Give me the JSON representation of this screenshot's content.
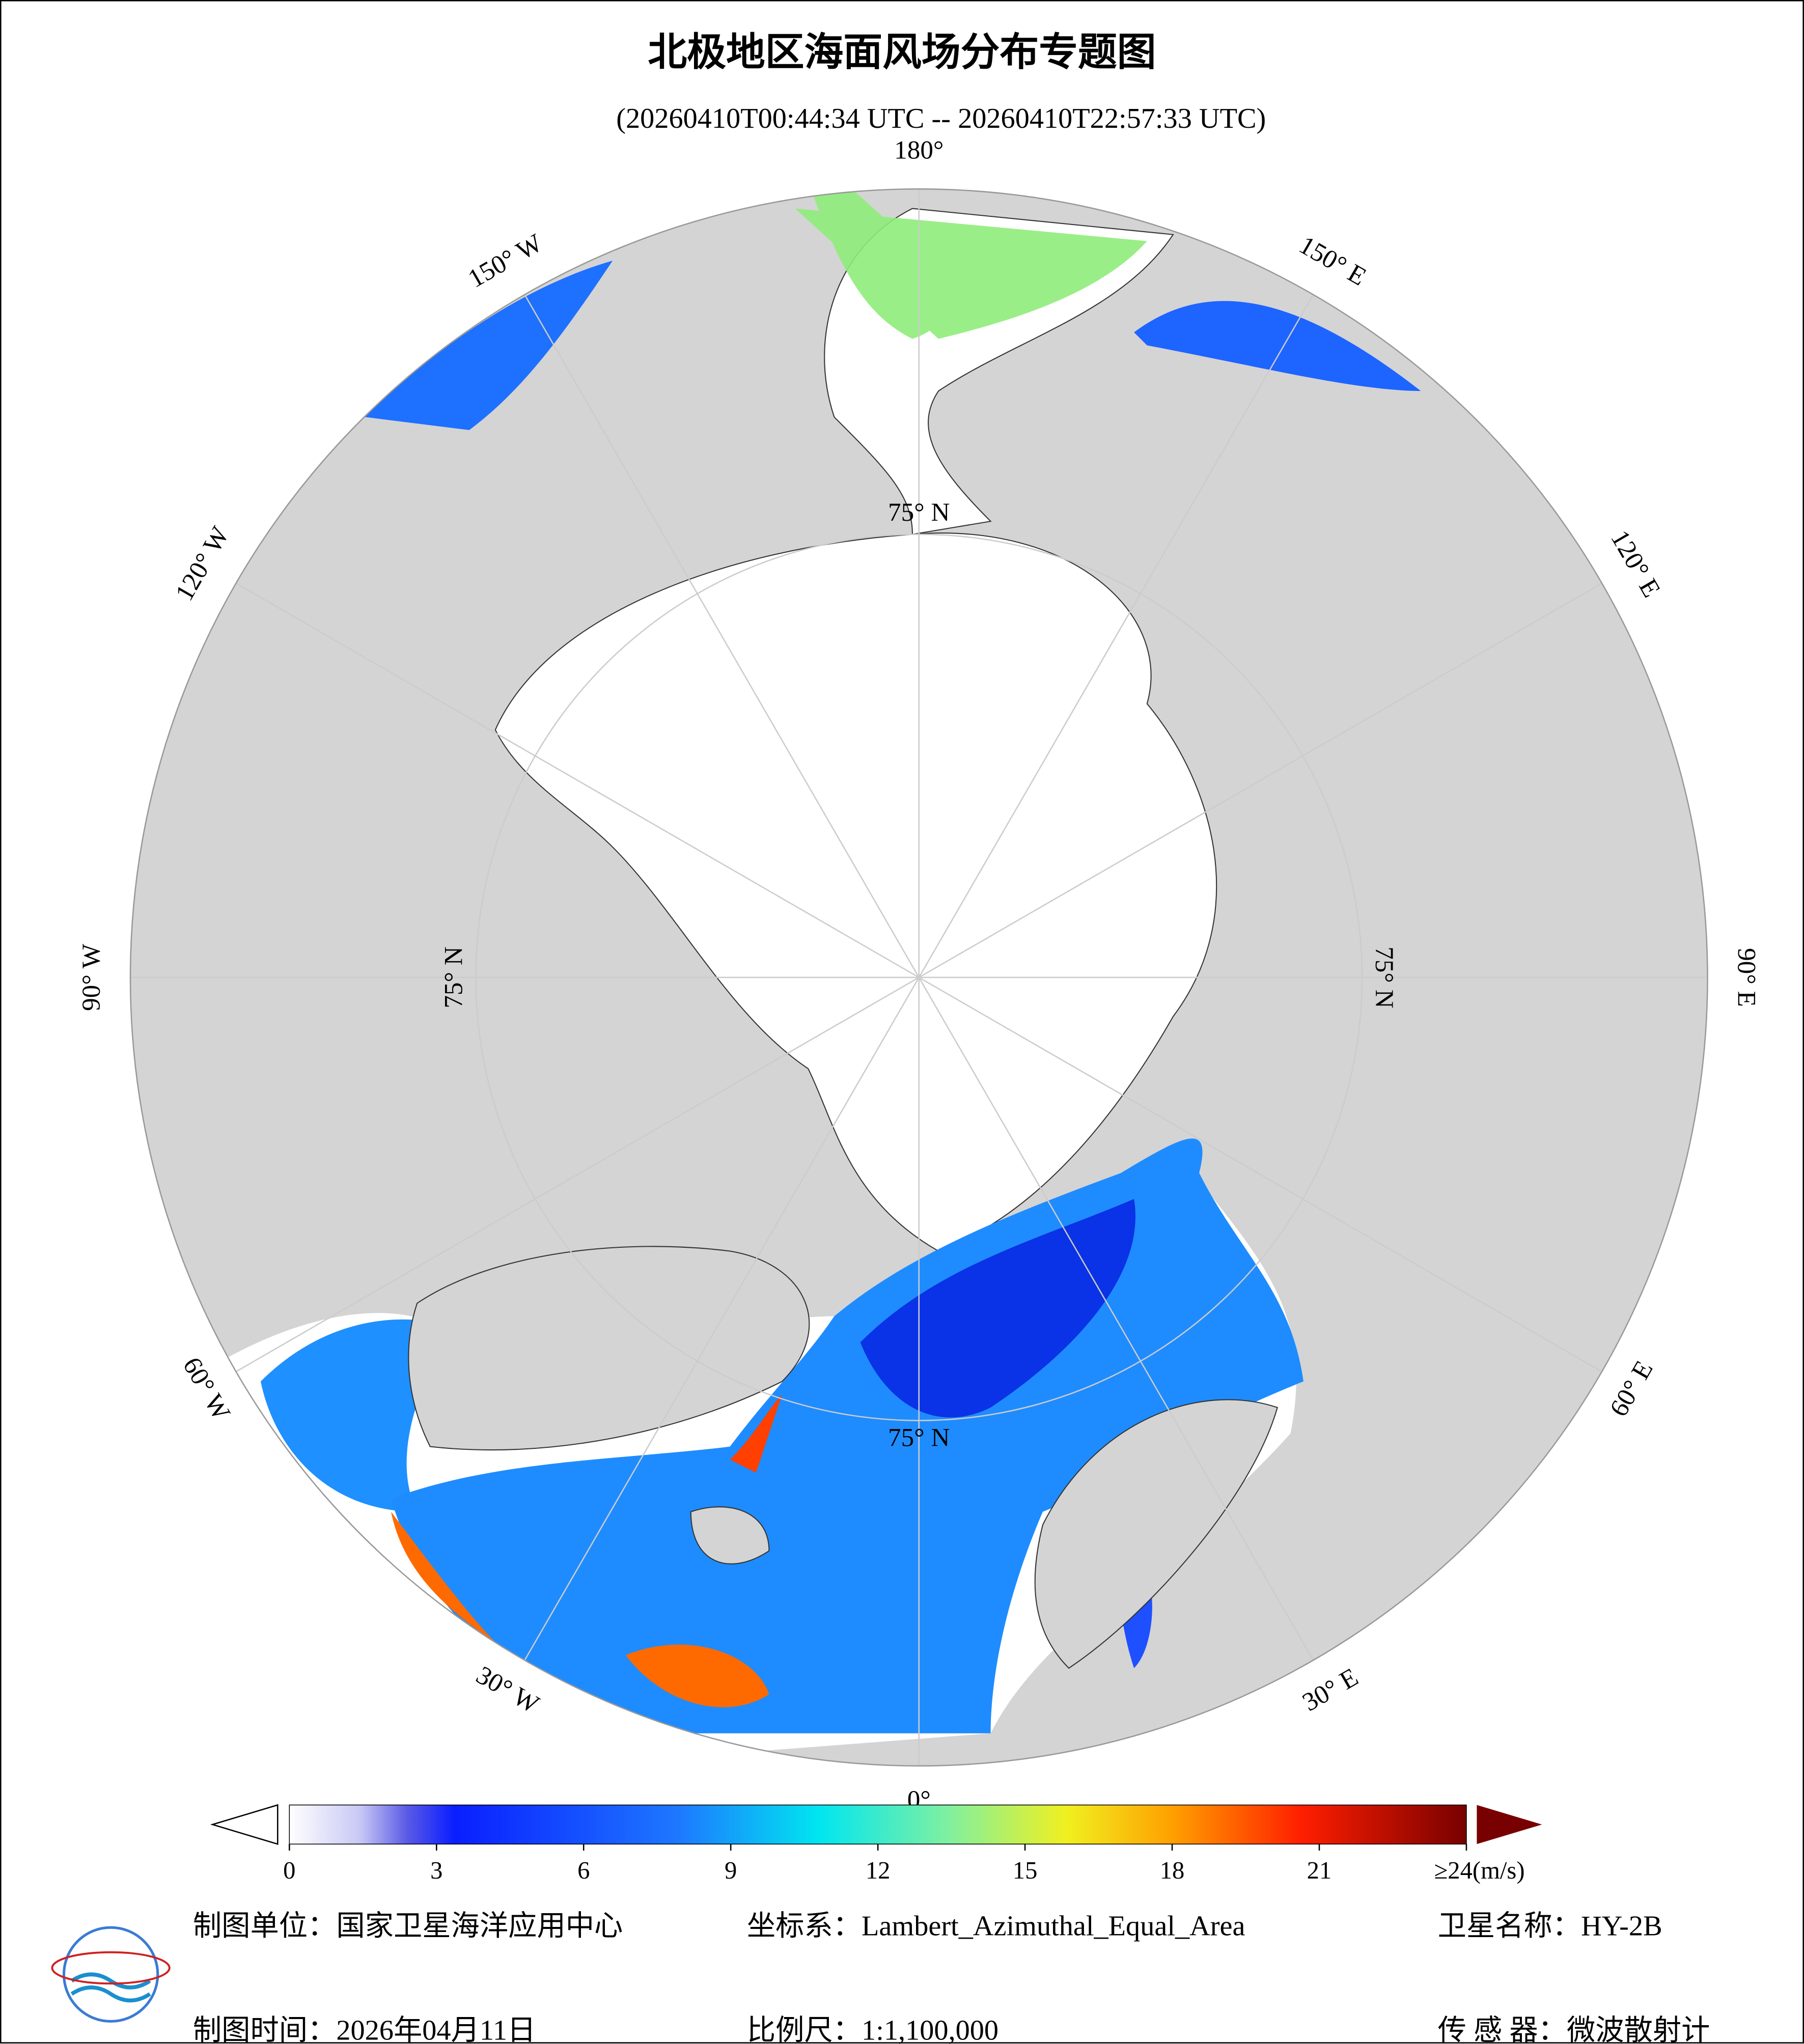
{
  "header": {
    "title": "北极地区海面风场分布专题图",
    "subtitle": "(20260410T00:44:34 UTC -- 20260410T22:57:33 UTC)"
  },
  "map": {
    "meridian_labels": [
      "0°",
      "30° E",
      "60° E",
      "90° E",
      "120° E",
      "150° E",
      "180°",
      "150° W",
      "120° W",
      "90° W",
      "60° W",
      "30° W"
    ],
    "parallel_labels": [
      "75° N",
      "75° N",
      "75° N",
      "75° N"
    ]
  },
  "colorbar": {
    "lim": [
      0,
      24
    ],
    "ticks": [
      0,
      3,
      6,
      9,
      12,
      15,
      18,
      21,
      {
        "value": 24,
        "label": "≥24(m/s)"
      }
    ]
  },
  "footer": {
    "left": [
      "制图单位：国家卫星海洋应用中心",
      "制图时间：2026年04月11日"
    ],
    "middle": [
      "坐标系：Lambert_Azimuthal_Equal_Area",
      "比例尺：1:1,100,000"
    ],
    "right": [
      "卫星名称：HY-2B",
      "传 感 器：微波散射计"
    ]
  }
}
